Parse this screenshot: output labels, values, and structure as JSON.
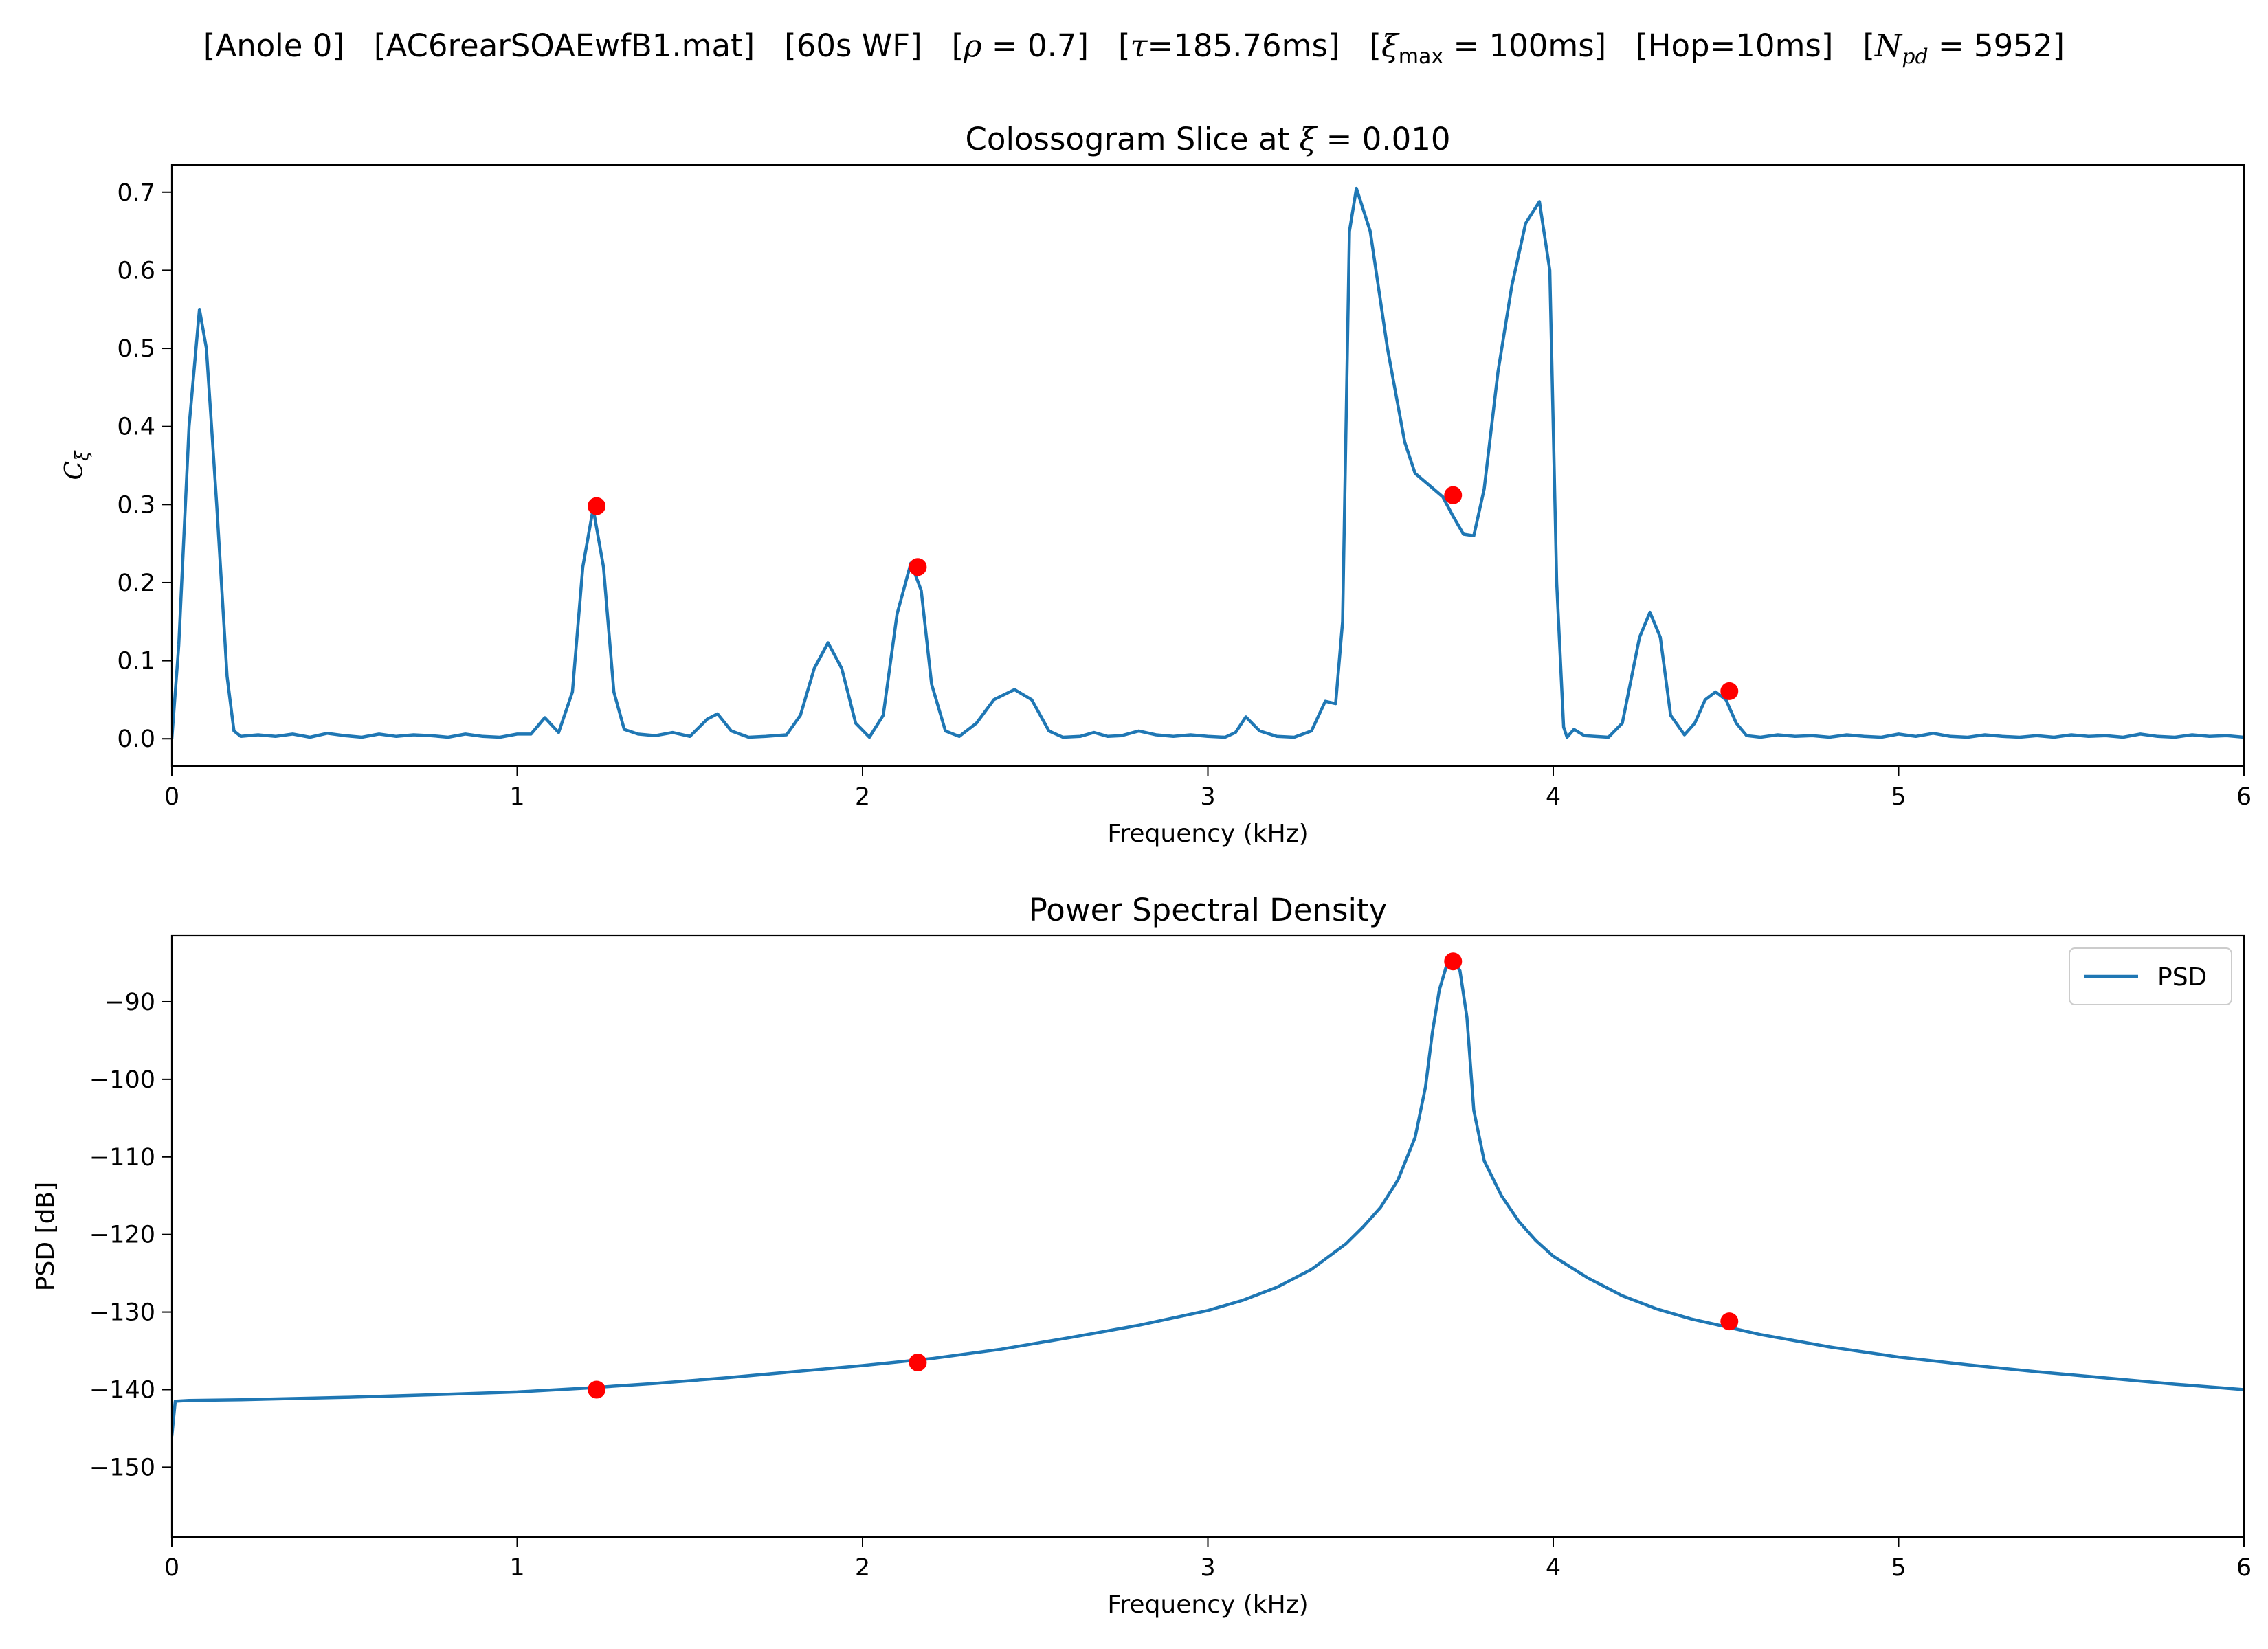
{
  "suptitle": {
    "anole": "[Anole 0]",
    "file": "[AC6rearSOAEwfB1.mat]",
    "wf": "[60s WF]",
    "rho": "0.7",
    "tau": "185.76ms",
    "xi_max": "100ms",
    "hop": "[Hop=10ms]",
    "npd": "5952"
  },
  "chart_data": [
    {
      "type": "line",
      "title_prefix": "Colossogram Slice at ",
      "title_value": "0.010",
      "xlabel": "Frequency (kHz)",
      "ylabel": "C_ξ",
      "xlim": [
        0,
        6
      ],
      "ylim": [
        -0.035,
        0.735
      ],
      "xticks": [
        0,
        1,
        2,
        3,
        4,
        5,
        6
      ],
      "yticks": [
        0.0,
        0.1,
        0.2,
        0.3,
        0.4,
        0.5,
        0.6,
        0.7
      ],
      "ytick_labels": [
        "0.0",
        "0.1",
        "0.2",
        "0.3",
        "0.4",
        "0.5",
        "0.6",
        "0.7"
      ],
      "grid": false,
      "line_color": "#1f77b4",
      "marker_color": "#ff0000",
      "series": [
        {
          "x": [
            0.0,
            0.02,
            0.05,
            0.08,
            0.1,
            0.13,
            0.16,
            0.18,
            0.2,
            0.25,
            0.3,
            0.35,
            0.4,
            0.45,
            0.5,
            0.55,
            0.6,
            0.65,
            0.7,
            0.75,
            0.8,
            0.85,
            0.9,
            0.95,
            1.0,
            1.04,
            1.08,
            1.12,
            1.16,
            1.19,
            1.22,
            1.25,
            1.28,
            1.31,
            1.35,
            1.4,
            1.45,
            1.5,
            1.55,
            1.58,
            1.62,
            1.67,
            1.72,
            1.78,
            1.82,
            1.86,
            1.9,
            1.94,
            1.98,
            2.02,
            2.06,
            2.1,
            2.14,
            2.17,
            2.2,
            2.24,
            2.28,
            2.33,
            2.38,
            2.44,
            2.49,
            2.54,
            2.58,
            2.63,
            2.67,
            2.71,
            2.75,
            2.8,
            2.85,
            2.9,
            2.95,
            3.0,
            3.05,
            3.08,
            3.11,
            3.15,
            3.2,
            3.25,
            3.3,
            3.34,
            3.37,
            3.39,
            3.41,
            3.43,
            3.47,
            3.52,
            3.57,
            3.6,
            3.64,
            3.68,
            3.71,
            3.74,
            3.77,
            3.8,
            3.84,
            3.88,
            3.92,
            3.96,
            3.99,
            4.01,
            4.03,
            4.04,
            4.06,
            4.09,
            4.12,
            4.16,
            4.2,
            4.25,
            4.28,
            4.31,
            4.34,
            4.38,
            4.41,
            4.44,
            4.47,
            4.5,
            4.53,
            4.56,
            4.6,
            4.65,
            4.7,
            4.75,
            4.8,
            4.85,
            4.9,
            4.95,
            5.0,
            5.05,
            5.1,
            5.15,
            5.2,
            5.25,
            5.3,
            5.35,
            5.4,
            5.45,
            5.5,
            5.55,
            5.6,
            5.65,
            5.7,
            5.75,
            5.8,
            5.85,
            5.9,
            5.95,
            6.0
          ],
          "y": [
            0.0,
            0.12,
            0.4,
            0.55,
            0.5,
            0.3,
            0.08,
            0.01,
            0.003,
            0.005,
            0.003,
            0.006,
            0.002,
            0.007,
            0.004,
            0.002,
            0.006,
            0.003,
            0.005,
            0.004,
            0.002,
            0.006,
            0.003,
            0.002,
            0.006,
            0.006,
            0.027,
            0.008,
            0.06,
            0.22,
            0.295,
            0.22,
            0.06,
            0.012,
            0.006,
            0.004,
            0.008,
            0.003,
            0.025,
            0.032,
            0.01,
            0.002,
            0.003,
            0.005,
            0.03,
            0.09,
            0.123,
            0.09,
            0.02,
            0.002,
            0.03,
            0.16,
            0.225,
            0.19,
            0.07,
            0.01,
            0.003,
            0.02,
            0.05,
            0.063,
            0.05,
            0.01,
            0.002,
            0.003,
            0.008,
            0.003,
            0.004,
            0.01,
            0.005,
            0.003,
            0.005,
            0.003,
            0.002,
            0.008,
            0.028,
            0.01,
            0.003,
            0.002,
            0.01,
            0.048,
            0.045,
            0.15,
            0.65,
            0.705,
            0.65,
            0.5,
            0.38,
            0.34,
            0.325,
            0.31,
            0.285,
            0.262,
            0.26,
            0.32,
            0.47,
            0.58,
            0.66,
            0.688,
            0.6,
            0.2,
            0.015,
            0.002,
            0.012,
            0.004,
            0.003,
            0.002,
            0.02,
            0.13,
            0.162,
            0.13,
            0.03,
            0.005,
            0.02,
            0.05,
            0.06,
            0.05,
            0.02,
            0.004,
            0.002,
            0.005,
            0.003,
            0.004,
            0.002,
            0.005,
            0.003,
            0.002,
            0.006,
            0.003,
            0.007,
            0.003,
            0.002,
            0.005,
            0.003,
            0.002,
            0.004,
            0.002,
            0.005,
            0.003,
            0.004,
            0.002,
            0.006,
            0.003,
            0.002,
            0.005,
            0.003,
            0.004,
            0.002
          ]
        }
      ],
      "markers": {
        "x": [
          1.23,
          2.16,
          3.71,
          4.51
        ],
        "y": [
          0.298,
          0.22,
          0.312,
          0.061
        ]
      }
    },
    {
      "type": "line",
      "title": "Power Spectral Density",
      "xlabel": "Frequency (kHz)",
      "ylabel": "PSD [dB]",
      "xlim": [
        0,
        6
      ],
      "ylim": [
        -159,
        -81.5
      ],
      "xticks": [
        0,
        1,
        2,
        3,
        4,
        5,
        6
      ],
      "yticks": [
        -150,
        -140,
        -130,
        -120,
        -110,
        -100,
        -90
      ],
      "ytick_labels": [
        "−150",
        "−140",
        "−130",
        "−120",
        "−110",
        "−100",
        "−90"
      ],
      "grid": false,
      "legend": "top-right",
      "legend_label": "PSD",
      "line_color": "#1f77b4",
      "marker_color": "#ff0000",
      "series": [
        {
          "name": "PSD",
          "x": [
            0.0,
            0.01,
            0.05,
            0.2,
            0.5,
            0.8,
            1.0,
            1.2,
            1.4,
            1.6,
            1.8,
            2.0,
            2.2,
            2.4,
            2.6,
            2.8,
            3.0,
            3.1,
            3.2,
            3.3,
            3.4,
            3.45,
            3.5,
            3.55,
            3.6,
            3.63,
            3.65,
            3.67,
            3.69,
            3.71,
            3.73,
            3.75,
            3.77,
            3.8,
            3.85,
            3.9,
            3.95,
            4.0,
            4.1,
            4.2,
            4.3,
            4.4,
            4.5,
            4.6,
            4.8,
            5.0,
            5.2,
            5.4,
            5.6,
            5.8,
            6.0
          ],
          "y": [
            -146,
            -141.5,
            -141.4,
            -141.3,
            -141.0,
            -140.6,
            -140.3,
            -139.8,
            -139.2,
            -138.5,
            -137.7,
            -136.9,
            -136.0,
            -134.8,
            -133.3,
            -131.7,
            -129.8,
            -128.5,
            -126.8,
            -124.5,
            -121.2,
            -119.0,
            -116.5,
            -113.0,
            -107.5,
            -101.0,
            -94.0,
            -88.5,
            -85.5,
            -84.8,
            -86.0,
            -92.0,
            -104.0,
            -110.5,
            -115.0,
            -118.3,
            -120.8,
            -122.8,
            -125.6,
            -127.9,
            -129.6,
            -130.9,
            -131.9,
            -132.9,
            -134.5,
            -135.8,
            -136.8,
            -137.7,
            -138.5,
            -139.3,
            -140.0
          ]
        }
      ],
      "markers": {
        "x": [
          1.23,
          2.16,
          3.71,
          4.51
        ],
        "y": [
          -140.0,
          -136.5,
          -84.8,
          -131.2
        ]
      }
    }
  ]
}
